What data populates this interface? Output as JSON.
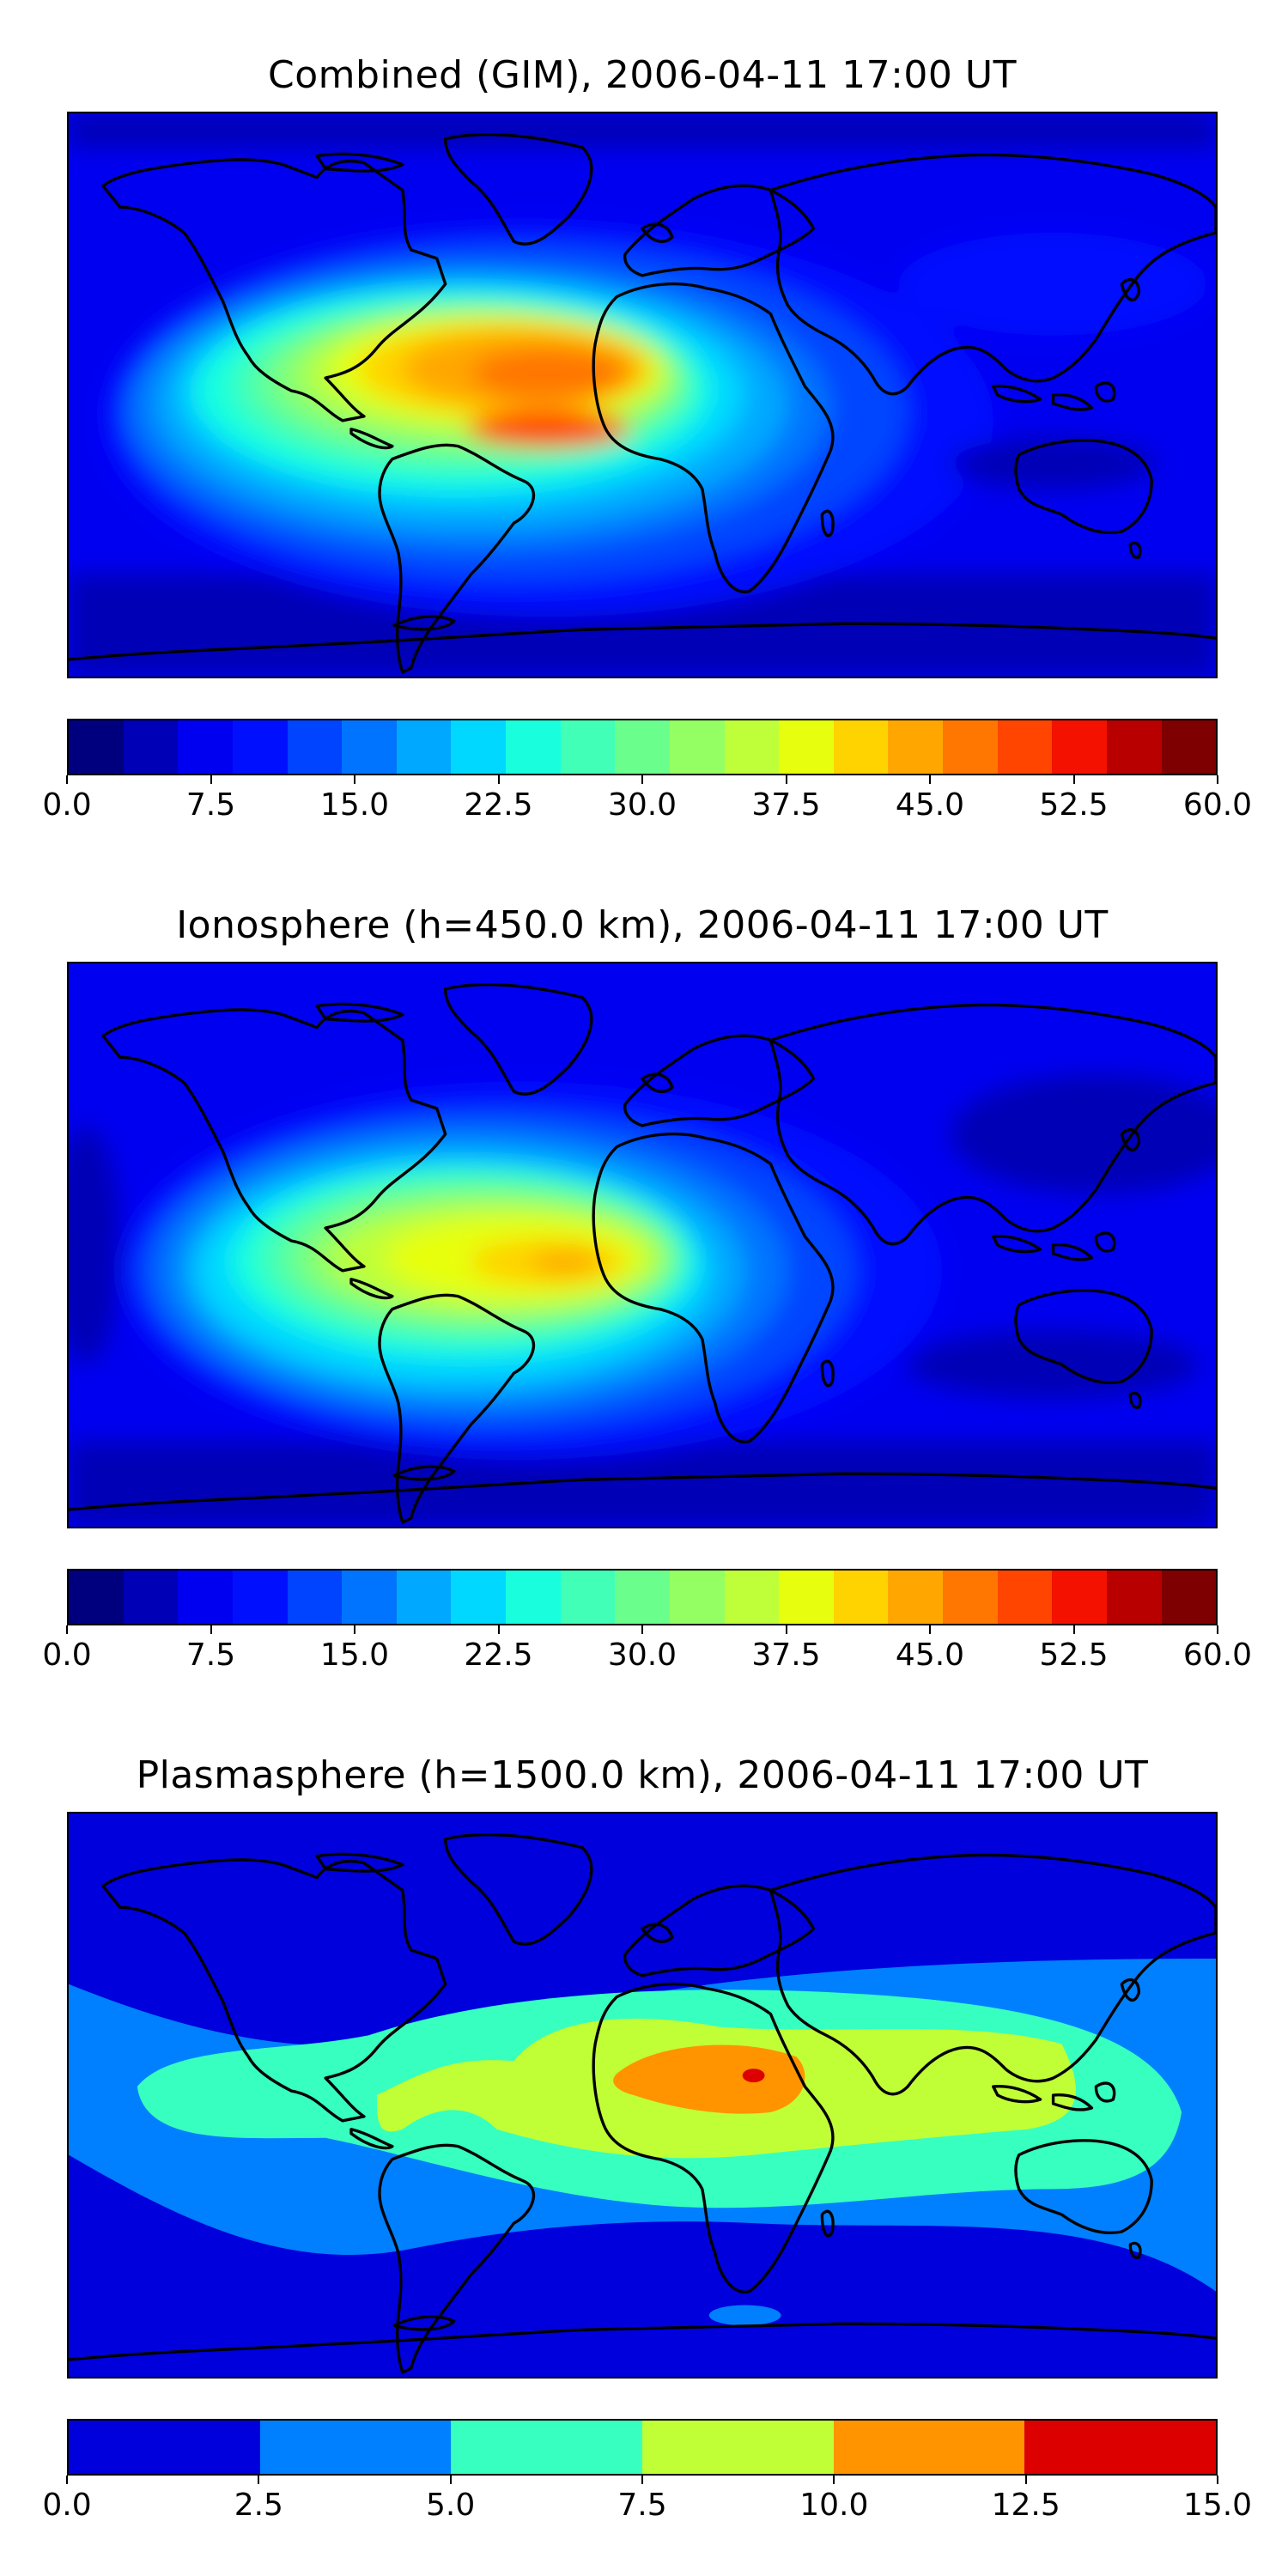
{
  "panels": [
    {
      "title": "Combined (GIM), 2006-04-11 17:00 UT",
      "colorbar": {
        "ticks": [
          "0.0",
          "7.5",
          "15.0",
          "22.5",
          "30.0",
          "37.5",
          "45.0",
          "52.5",
          "60.0"
        ],
        "range": [
          0,
          60
        ],
        "levels": [
          "#00007f",
          "#0000b6",
          "#0000f1",
          "#0010ff",
          "#0044ff",
          "#0074ff",
          "#00a8ff",
          "#00d8ff",
          "#19ffde",
          "#41ffb6",
          "#6aff8d",
          "#94ff63",
          "#bfff39",
          "#e7ff0f",
          "#ffd300",
          "#ffa700",
          "#ff7600",
          "#ff4500",
          "#f41100",
          "#b80000",
          "#7f0000"
        ]
      }
    },
    {
      "title": "Ionosphere  (h=450.0 km), 2006-04-11 17:00 UT",
      "colorbar": {
        "ticks": [
          "0.0",
          "7.5",
          "15.0",
          "22.5",
          "30.0",
          "37.5",
          "45.0",
          "52.5",
          "60.0"
        ],
        "range": [
          0,
          60
        ],
        "levels": [
          "#00007f",
          "#0000b6",
          "#0000f1",
          "#0010ff",
          "#0044ff",
          "#0074ff",
          "#00a8ff",
          "#00d8ff",
          "#19ffde",
          "#41ffb6",
          "#6aff8d",
          "#94ff63",
          "#bfff39",
          "#e7ff0f",
          "#ffd300",
          "#ffa700",
          "#ff7600",
          "#ff4500",
          "#f41100",
          "#b80000",
          "#7f0000"
        ]
      }
    },
    {
      "title": "Plasmasphere (h=1500.0 km), 2006-04-11 17:00 UT",
      "colorbar": {
        "ticks": [
          "0.0",
          "2.5",
          "5.0",
          "7.5",
          "10.0",
          "12.5",
          "15.0"
        ],
        "range": [
          0,
          15
        ],
        "levels": [
          "#0000dd",
          "#0080ff",
          "#36ffc0",
          "#c0ff36",
          "#ff9400",
          "#dd0000"
        ]
      }
    }
  ]
}
